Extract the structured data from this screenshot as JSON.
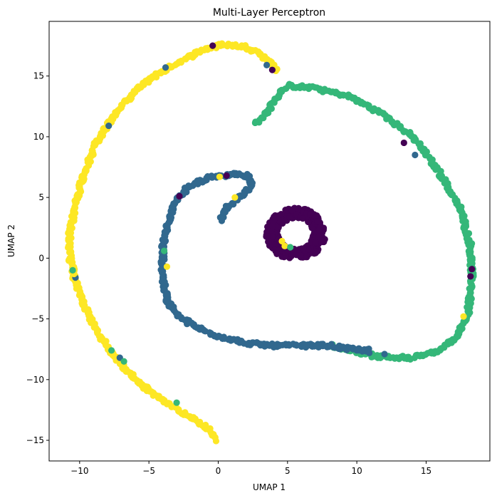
{
  "chart_data": {
    "type": "scatter",
    "title": "Multi-Layer Perceptron",
    "xlabel": "UMAP 1",
    "ylabel": "UMAP 2",
    "xlim": [
      -12.2,
      19.6
    ],
    "ylim": [
      -16.7,
      19.5
    ],
    "xticks": [
      -10,
      -5,
      0,
      5,
      10,
      15
    ],
    "yticks": [
      -15,
      -10,
      -5,
      0,
      5,
      10,
      15
    ],
    "grid": false,
    "legend": "none",
    "colors": {
      "class_0": "#440154",
      "class_1": "#31688e",
      "class_2": "#35b779",
      "class_3": "#fde725"
    },
    "series": [
      {
        "class": 3,
        "color": "#fde725",
        "shape": "outer-left-arm",
        "path": [
          [
            -0.2,
            -15.0
          ],
          [
            -0.6,
            -14.2
          ],
          [
            -1.8,
            -13.2
          ],
          [
            -3.8,
            -11.9
          ],
          [
            -5.7,
            -10.3
          ],
          [
            -7.5,
            -8.1
          ],
          [
            -8.8,
            -6.0
          ],
          [
            -9.6,
            -4.0
          ],
          [
            -10.3,
            -2.0
          ],
          [
            -10.7,
            0.0
          ],
          [
            -10.7,
            2.0
          ],
          [
            -10.3,
            4.5
          ],
          [
            -9.7,
            7.0
          ],
          [
            -8.8,
            9.5
          ],
          [
            -7.5,
            11.8
          ],
          [
            -6.0,
            13.8
          ],
          [
            -4.5,
            15.1
          ],
          [
            -2.8,
            16.2
          ],
          [
            -1.0,
            17.2
          ],
          [
            0.5,
            17.6
          ],
          [
            2.0,
            17.4
          ],
          [
            3.0,
            16.9
          ],
          [
            3.8,
            16.1
          ],
          [
            4.3,
            15.3
          ]
        ]
      },
      {
        "class": 2,
        "color": "#35b779",
        "shape": "outer-right-arc",
        "path": [
          [
            2.7,
            11.1
          ],
          [
            3.5,
            12.0
          ],
          [
            4.3,
            13.3
          ],
          [
            5.0,
            14.2
          ],
          [
            7.0,
            14.0
          ],
          [
            9.5,
            13.3
          ],
          [
            12.0,
            11.8
          ],
          [
            14.2,
            9.8
          ],
          [
            16.0,
            7.0
          ],
          [
            17.5,
            4.0
          ],
          [
            18.2,
            1.0
          ],
          [
            18.3,
            -2.0
          ],
          [
            18.0,
            -4.5
          ],
          [
            17.3,
            -6.3
          ],
          [
            16.0,
            -7.6
          ],
          [
            14.0,
            -8.2
          ],
          [
            11.5,
            -8.1
          ],
          [
            10.0,
            -7.7
          ],
          [
            8.2,
            -7.2
          ]
        ]
      },
      {
        "class": 1,
        "color": "#31688e",
        "shape": "inner-spiral",
        "path": [
          [
            0.2,
            3.2
          ],
          [
            0.5,
            4.0
          ],
          [
            1.2,
            4.7
          ],
          [
            2.0,
            5.4
          ],
          [
            2.4,
            6.2
          ],
          [
            2.2,
            6.8
          ],
          [
            1.2,
            6.9
          ],
          [
            -0.5,
            6.7
          ],
          [
            -2.0,
            6.0
          ],
          [
            -3.0,
            4.8
          ],
          [
            -3.6,
            3.0
          ],
          [
            -4.0,
            1.0
          ],
          [
            -4.0,
            -1.5
          ],
          [
            -3.7,
            -3.5
          ],
          [
            -2.8,
            -4.8
          ],
          [
            -1.6,
            -5.7
          ],
          [
            0.0,
            -6.4
          ],
          [
            2.0,
            -7.0
          ],
          [
            4.0,
            -7.2
          ],
          [
            6.0,
            -7.2
          ],
          [
            8.0,
            -7.2
          ],
          [
            9.5,
            -7.5
          ],
          [
            11.0,
            -7.6
          ]
        ]
      },
      {
        "class": 0,
        "color": "#440154",
        "shape": "ring",
        "center": [
          5.6,
          2.0
        ],
        "radius": 1.7
      }
    ],
    "points": [
      {
        "class": 0,
        "x": -0.4,
        "y": 17.5
      },
      {
        "class": 0,
        "x": 3.9,
        "y": 15.5
      },
      {
        "class": 1,
        "x": 3.5,
        "y": 15.9
      },
      {
        "class": 1,
        "x": -3.8,
        "y": 15.7
      },
      {
        "class": 1,
        "x": -7.9,
        "y": 10.9
      },
      {
        "class": 0,
        "x": 13.4,
        "y": 9.5
      },
      {
        "class": 1,
        "x": 14.2,
        "y": 8.5
      },
      {
        "class": 0,
        "x": 0.6,
        "y": 6.8
      },
      {
        "class": 3,
        "x": 0.1,
        "y": 6.7
      },
      {
        "class": 3,
        "x": 1.2,
        "y": 5.0
      },
      {
        "class": 0,
        "x": -2.8,
        "y": 5.1
      },
      {
        "class": 3,
        "x": -3.7,
        "y": -0.7
      },
      {
        "class": 2,
        "x": -3.9,
        "y": 0.6
      },
      {
        "class": 0,
        "x": 18.3,
        "y": -0.9
      },
      {
        "class": 0,
        "x": 18.2,
        "y": -1.5
      },
      {
        "class": 2,
        "x": 18.3,
        "y": -2.3
      },
      {
        "class": 3,
        "x": 17.7,
        "y": -4.8
      },
      {
        "class": 1,
        "x": -10.3,
        "y": -1.6
      },
      {
        "class": 3,
        "x": -10.4,
        "y": -1.3
      },
      {
        "class": 2,
        "x": -10.5,
        "y": -1.0
      },
      {
        "class": 1,
        "x": -7.1,
        "y": -8.2
      },
      {
        "class": 2,
        "x": -6.8,
        "y": -8.5
      },
      {
        "class": 2,
        "x": -7.7,
        "y": -7.6
      },
      {
        "class": 2,
        "x": -3.0,
        "y": -11.9
      },
      {
        "class": 1,
        "x": 9.0,
        "y": -7.4
      },
      {
        "class": 1,
        "x": 10.0,
        "y": -7.6
      },
      {
        "class": 1,
        "x": 10.9,
        "y": -7.8
      },
      {
        "class": 1,
        "x": 12.0,
        "y": -7.9
      },
      {
        "class": 3,
        "x": 4.8,
        "y": 1.0
      },
      {
        "class": 3,
        "x": 4.6,
        "y": 1.4
      },
      {
        "class": 2,
        "x": 5.2,
        "y": 0.9
      }
    ]
  }
}
